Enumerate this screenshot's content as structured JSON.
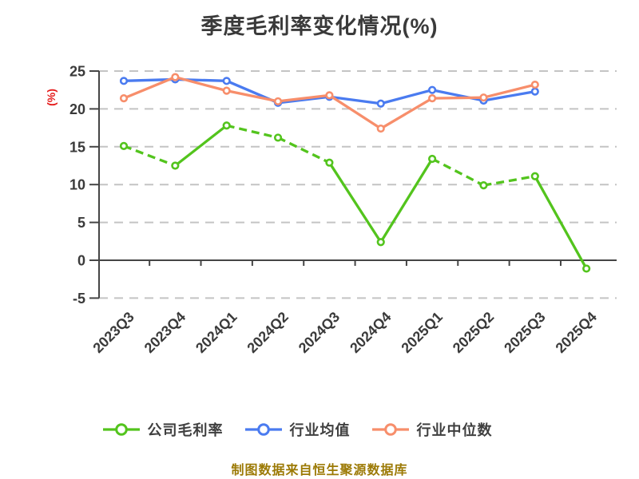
{
  "chart_data": {
    "type": "line",
    "title": "季度毛利率变化情况(%)",
    "ylabel": "(%)",
    "xlabel": "",
    "caption": "制图数据来自恒生聚源数据库",
    "categories": [
      "2023Q3",
      "2023Q4",
      "2024Q1",
      "2024Q2",
      "2024Q3",
      "2024Q4",
      "2025Q1",
      "2025Q2",
      "2025Q3",
      "2025Q4"
    ],
    "series": [
      {
        "name": "公司毛利率",
        "color": "#53c41d",
        "marker": "circle-white-fill",
        "values": [
          15.1,
          12.5,
          17.8,
          16.2,
          12.9,
          2.4,
          13.4,
          9.9,
          11.1,
          -1.1
        ],
        "dashed_segments": [
          0,
          2,
          3,
          6,
          7
        ]
      },
      {
        "name": "行业均值",
        "color": "#4a7bf0",
        "marker": "circle-white-fill",
        "values": [
          23.7,
          23.9,
          23.7,
          20.8,
          21.6,
          20.7,
          22.5,
          21.1,
          22.3,
          null
        ],
        "dashed_segments": []
      },
      {
        "name": "行业中位数",
        "color": "#f78e6b",
        "marker": "circle-white-fill",
        "values": [
          21.4,
          24.2,
          22.4,
          21.0,
          21.8,
          17.4,
          21.4,
          21.5,
          23.2,
          null
        ],
        "dashed_segments": []
      }
    ],
    "y_axis": {
      "min": -5,
      "max": 25,
      "ticks": [
        25,
        20,
        15,
        10,
        5,
        0,
        -5
      ]
    },
    "grid": {
      "visible": true,
      "style": "dashed",
      "color": "#c4c4c4"
    },
    "axis_color": "#454545",
    "text_color": "#3a3a3a",
    "accent_red": "#e51c1c",
    "caption_color": "#9c7a06",
    "legend_position": "bottom",
    "x_axis_line_at_value": 0
  }
}
